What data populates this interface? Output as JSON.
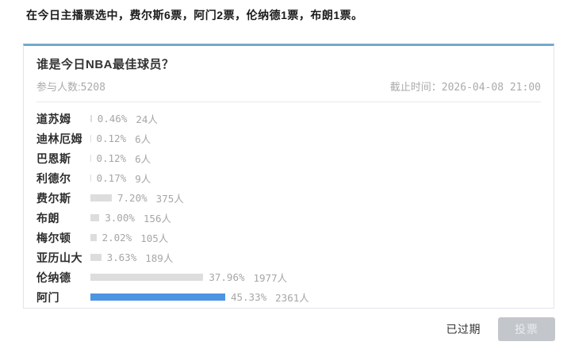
{
  "announcement": "在今日主播票选中，费尔斯6票，阿门2票，伦纳德1票，布朗1票。",
  "poll": {
    "title": "谁是今日NBA最佳球员？",
    "participants": {
      "label": "参与人数:",
      "value": "5208"
    },
    "deadline": {
      "label": "截止时间：",
      "value": "2026-04-08 21:00"
    },
    "options": [
      {
        "name": "道苏姆",
        "percent": 0.46,
        "percent_label": "0.46%",
        "count_label": "24人",
        "leading": false
      },
      {
        "name": "迪林厄姆",
        "percent": 0.12,
        "percent_label": "0.12%",
        "count_label": "6人",
        "leading": false
      },
      {
        "name": "巴恩斯",
        "percent": 0.12,
        "percent_label": "0.12%",
        "count_label": "6人",
        "leading": false
      },
      {
        "name": "利德尔",
        "percent": 0.17,
        "percent_label": "0.17%",
        "count_label": "9人",
        "leading": false
      },
      {
        "name": "费尔斯",
        "percent": 7.2,
        "percent_label": "7.20%",
        "count_label": "375人",
        "leading": false
      },
      {
        "name": "布朗",
        "percent": 3.0,
        "percent_label": "3.00%",
        "count_label": "156人",
        "leading": false
      },
      {
        "name": "梅尔顿",
        "percent": 2.02,
        "percent_label": "2.02%",
        "count_label": "105人",
        "leading": false
      },
      {
        "name": "亚历山大",
        "percent": 3.63,
        "percent_label": "3.63%",
        "count_label": "189人",
        "leading": false
      },
      {
        "name": "伦纳德",
        "percent": 37.96,
        "percent_label": "37.96%",
        "count_label": "1977人",
        "leading": false
      },
      {
        "name": "阿门",
        "percent": 45.33,
        "percent_label": "45.33%",
        "count_label": "2361人",
        "leading": true
      }
    ],
    "colors": {
      "accent_top_border": "#74aacb",
      "bar_gray": "#dddddd",
      "bar_leading": "#4d94e2"
    }
  },
  "footer": {
    "expired_label": "已过期",
    "vote_button_label": "投票"
  }
}
